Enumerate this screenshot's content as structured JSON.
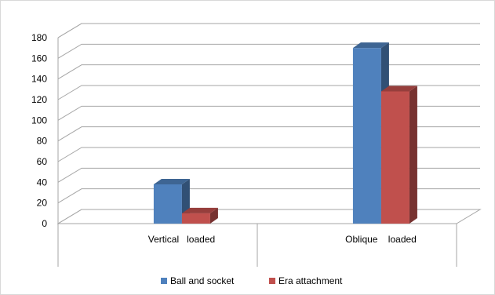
{
  "chart_data": {
    "type": "bar",
    "categories": [
      "Vertical   loaded",
      "Oblique    loaded"
    ],
    "series": [
      {
        "name": "Ball and socket",
        "values": [
          38,
          170
        ],
        "color": "#4F81BD"
      },
      {
        "name": "Era attachment",
        "values": [
          10,
          128
        ],
        "color": "#C0504D"
      }
    ],
    "ylim": [
      0,
      180
    ],
    "yticks": [
      0,
      20,
      40,
      60,
      80,
      100,
      120,
      140,
      160,
      180
    ],
    "grid": true,
    "legend_position": "bottom",
    "style": "3d-clustered-column"
  }
}
